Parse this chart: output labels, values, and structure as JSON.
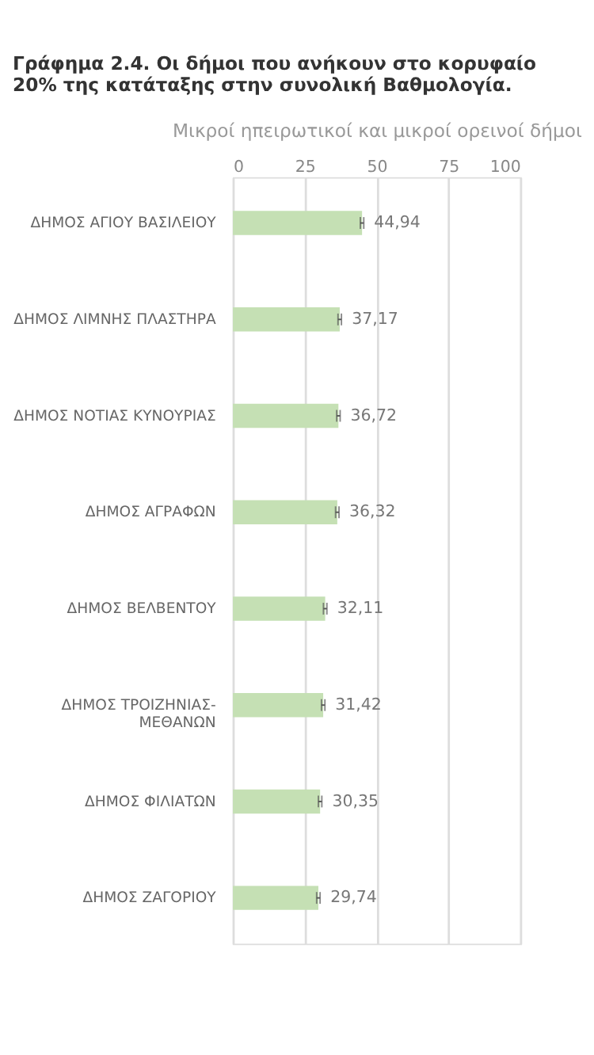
{
  "chart_data": {
    "type": "bar",
    "orientation": "horizontal",
    "title": "Γράφημα 2.4. Οι δήμοι που ανήκουν στο κορυφαίο 20% της κατάταξης στην συνολική Βαθμολογία.",
    "subtitle": "Μικροί ηπειρωτικοί και μικροί ορεινοί δήμοι",
    "categories": [
      "ΔΗΜΟΣ ΑΓΙΟΥ ΒΑΣΙΛΕΙΟΥ",
      "ΔΗΜΟΣ ΛΙΜΝΗΣ ΠΛΑΣΤΗΡΑ",
      "ΔΗΜΟΣ ΝΟΤΙΑΣ ΚΥΝΟΥΡΙΑΣ",
      "ΔΗΜΟΣ ΑΓΡΑΦΩΝ",
      "ΔΗΜΟΣ ΒΕΛΒΕΝΤΟΥ",
      "ΔΗΜΟΣ ΤΡΟΙΖΗΝΙΑΣ-ΜΕΘΑΝΩΝ",
      "ΔΗΜΟΣ ΦΙΛΙΑΤΩΝ",
      "ΔΗΜΟΣ ΖΑΓΟΡΙΟΥ"
    ],
    "values": [
      44.94,
      37.17,
      36.72,
      36.32,
      32.11,
      31.42,
      30.35,
      29.74
    ],
    "value_labels": [
      "44,94",
      "37,17",
      "36,72",
      "36,32",
      "32,11",
      "31,42",
      "30,35",
      "29,74"
    ],
    "errors": [
      0.6,
      0.6,
      0.6,
      0.6,
      0.6,
      0.6,
      0.6,
      0.6
    ],
    "color": "#c5e0b4",
    "xlim": [
      0,
      100
    ],
    "xticks": [
      0,
      25,
      50,
      75,
      100
    ],
    "grid": "x"
  }
}
